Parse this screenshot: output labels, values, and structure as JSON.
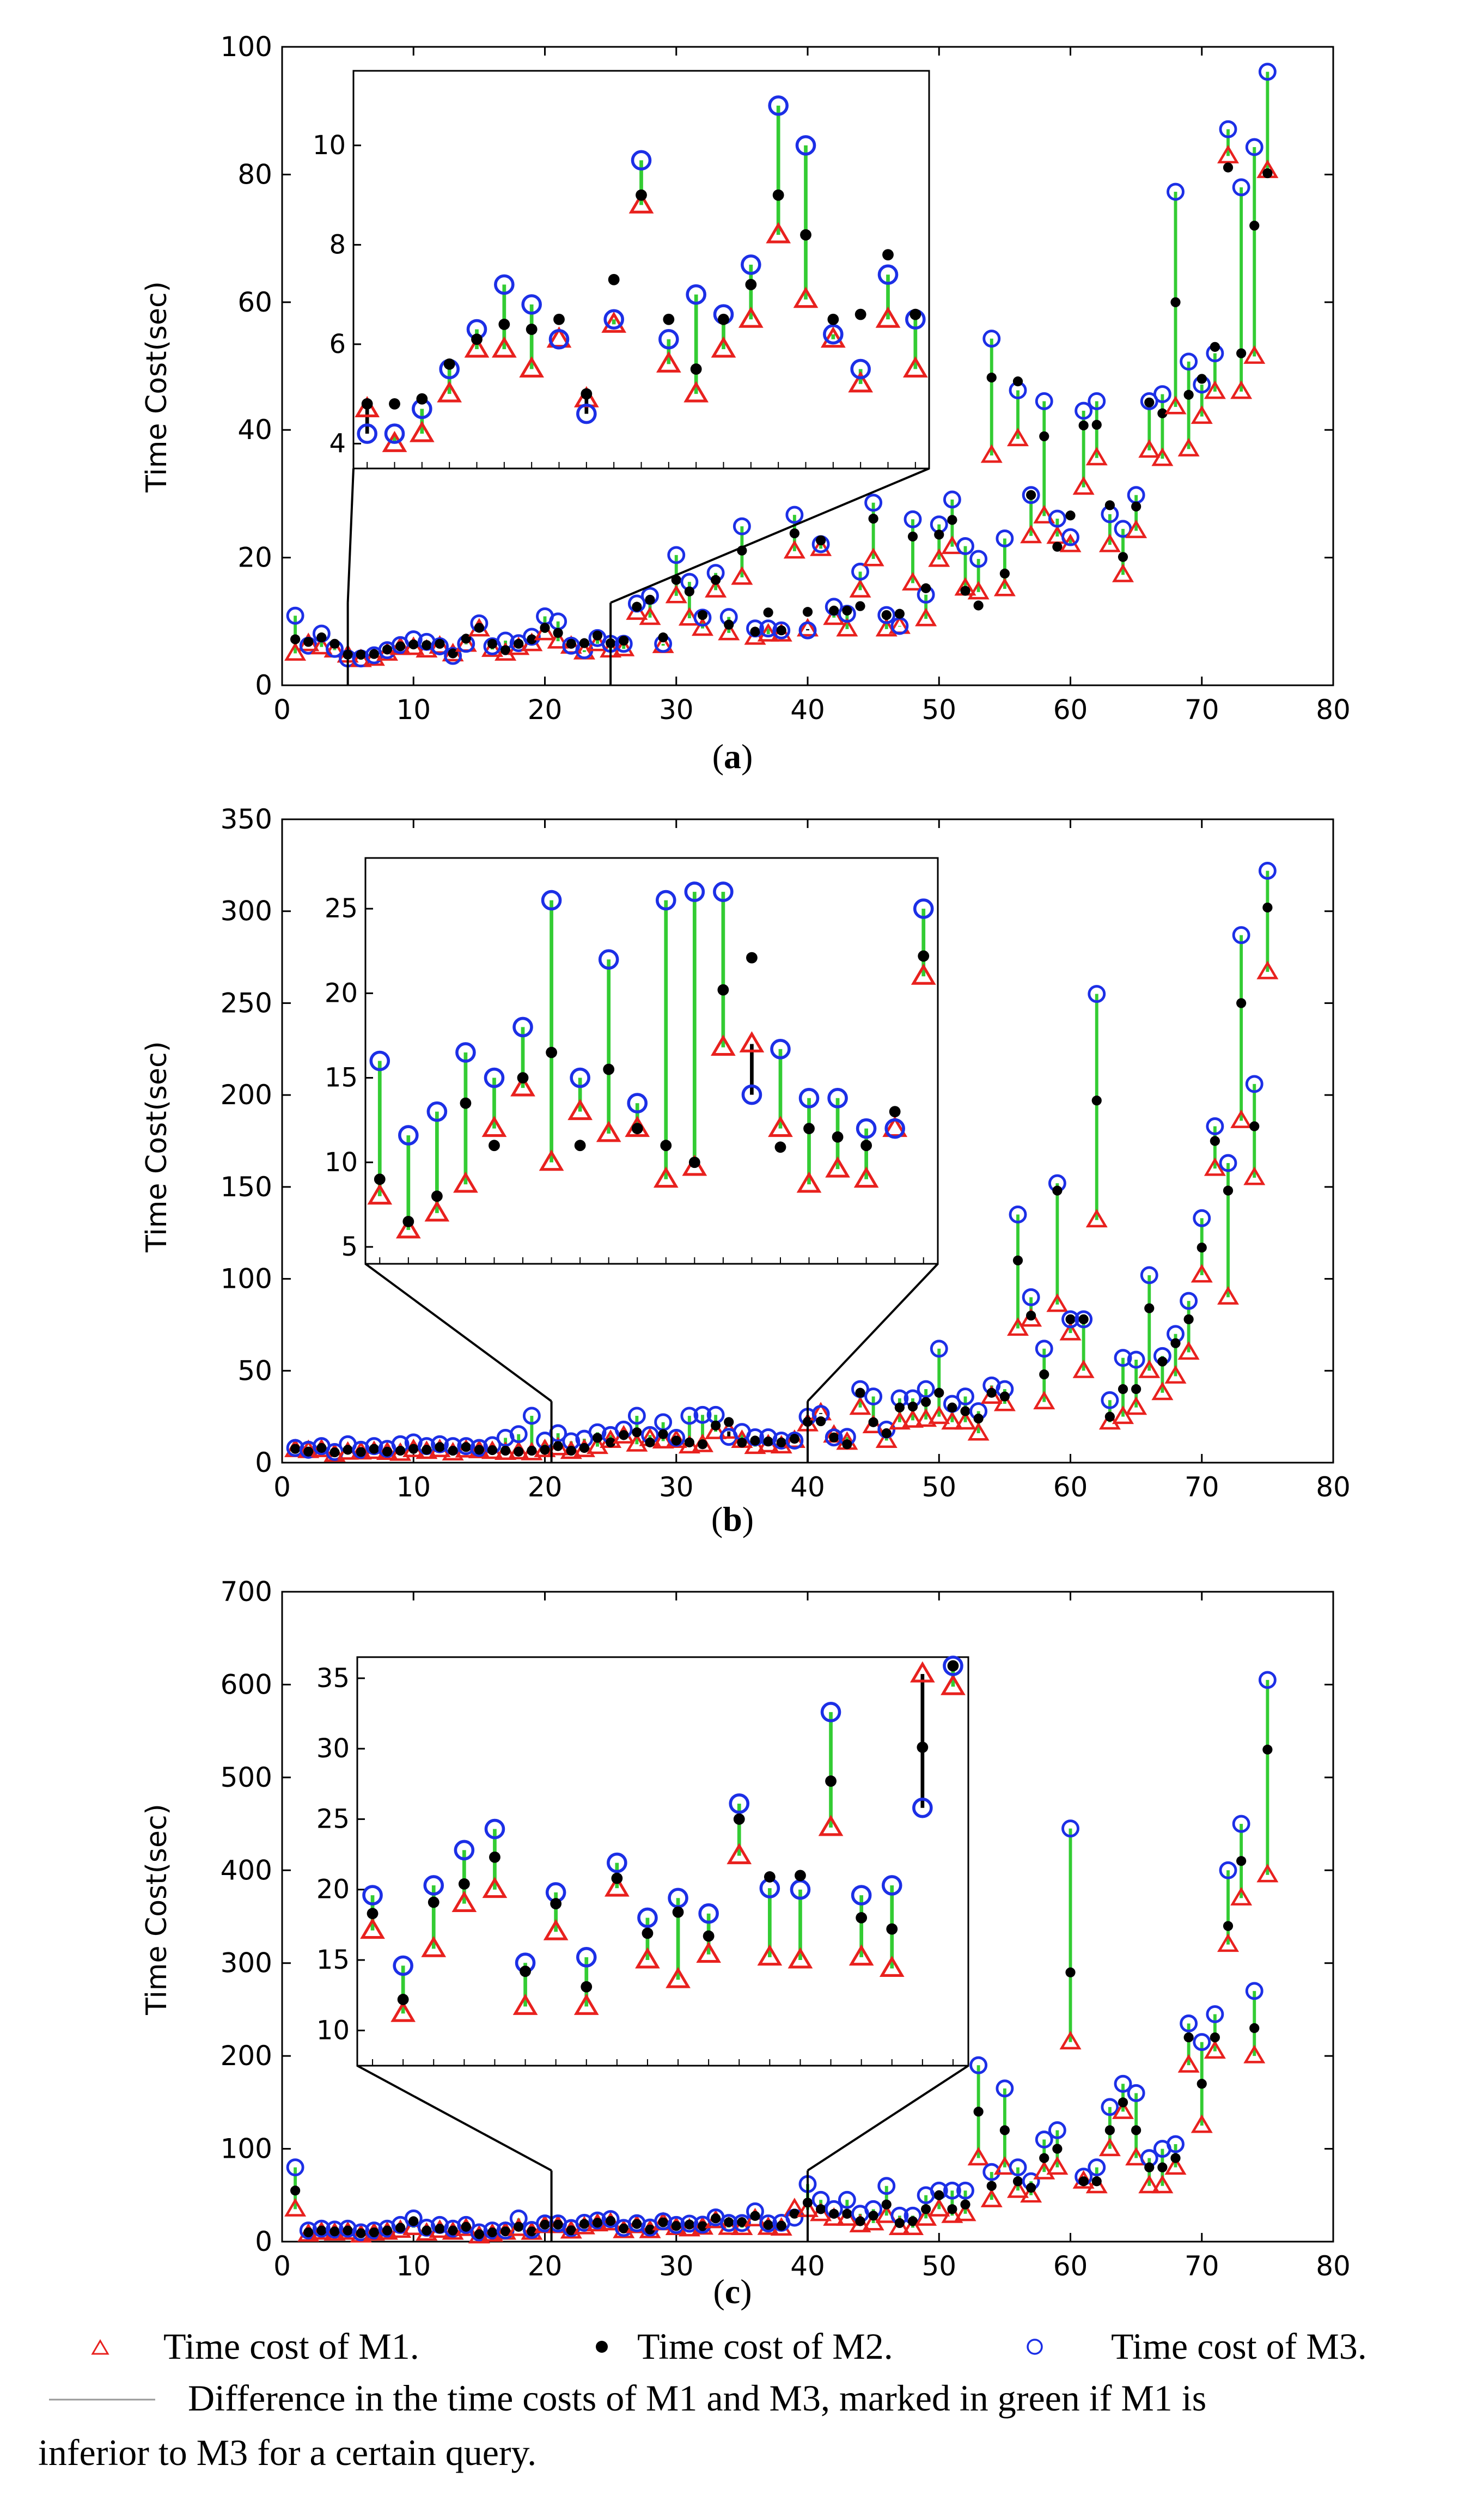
{
  "legend": {
    "m1": "Time cost of M1.",
    "m2": "Time cost of M2.",
    "m3": "Time cost of M3.",
    "line_line1": "Difference in the time costs of M1 and M3, marked in green if M1 is",
    "line_line2": "inferior to M3 for a certain query."
  },
  "colors": {
    "m1": "#e8211e",
    "m2": "#000000",
    "m3": "#1c2fe6",
    "diff": "#000000",
    "diff_worse": "#33cc33"
  },
  "chart_data": [
    {
      "type": "scatter",
      "caption_open": "(",
      "caption_letter": "a",
      "caption_close": ")",
      "ylabel": "Time Cost(sec)",
      "xlim": [
        0,
        80
      ],
      "ylim": [
        0,
        100
      ],
      "xticks": [
        0,
        10,
        20,
        30,
        40,
        50,
        60,
        70,
        80
      ],
      "yticks": [
        0,
        20,
        40,
        60,
        80,
        100
      ],
      "inset": {
        "xrange": [
          5,
          25
        ],
        "ylim": [
          3.5,
          11.5
        ],
        "yticks": [
          4,
          6,
          8,
          10
        ]
      },
      "series": [
        {
          "name": "M1",
          "values": [
            5.0,
            6.5,
            6.0,
            5.5,
            4.7,
            4.0,
            4.2,
            5.0,
            5.9,
            5.9,
            5.5,
            6.1,
            4.9,
            6.4,
            8.8,
            5.6,
            5.0,
            5.9,
            6.5,
            8.2,
            6.9,
            6.1,
            5.2,
            6.5,
            5.5,
            5.7,
            11.4,
            10.6,
            6.2,
            14.0,
            10.5,
            8.9,
            14.9,
            8.2,
            16.9,
            7.5,
            8.0,
            8.0,
            21.0,
            8.8,
            21.4,
            10.6,
            8.8,
            14.9,
            19.8,
            8.8,
            9.2,
            16.0,
            10.4,
            19.7,
            21.7,
            15.2,
            14.6,
            36.0,
            15.1,
            38.6,
            23.4,
            26.5,
            23.3,
            22.0,
            31.0,
            35.6,
            22.0,
            17.3,
            24.2,
            36.8,
            35.5,
            43.6,
            37.0,
            42.1,
            46.0,
            82.9,
            46.0,
            51.5,
            80.6
          ]
        },
        {
          "name": "M2",
          "values": [
            7.2,
            6.8,
            7.5,
            6.5,
            4.8,
            4.8,
            4.9,
            5.6,
            6.1,
            6.4,
            6.3,
            6.5,
            5.0,
            7.3,
            9.0,
            6.5,
            5.5,
            6.5,
            7.2,
            9.0,
            8.2,
            6.5,
            6.6,
            7.8,
            6.6,
            7.0,
            12.3,
            13.4,
            7.5,
            16.5,
            14.7,
            11.0,
            16.5,
            9.5,
            21.1,
            8.4,
            11.4,
            8.6,
            23.8,
            11.5,
            22.7,
            11.7,
            11.7,
            12.4,
            26.1,
            11.0,
            11.2,
            23.3,
            15.2,
            23.6,
            25.9,
            14.8,
            12.5,
            48.2,
            17.5,
            47.6,
            29.8,
            39.0,
            21.7,
            26.6,
            40.7,
            40.8,
            28.2,
            20.1,
            28.0,
            44.3,
            42.6,
            60.0,
            45.5,
            48.0,
            53.0,
            81.1,
            52.0,
            72.0,
            80.2
          ]
        },
        {
          "name": "M3",
          "values": [
            10.9,
            6.2,
            8.1,
            5.7,
            4.2,
            4.2,
            4.7,
            5.5,
            6.3,
            7.2,
            6.8,
            6.1,
            4.6,
            6.5,
            9.7,
            6.1,
            7.0,
            6.6,
            7.6,
            10.8,
            10.0,
            6.2,
            5.5,
            7.4,
            6.5,
            6.5,
            12.8,
            14.0,
            6.5,
            20.4,
            16.2,
            10.6,
            17.6,
            10.7,
            24.9,
            8.9,
            8.9,
            8.6,
            26.7,
            8.6,
            22.1,
            12.3,
            11.2,
            17.8,
            28.6,
            11.0,
            9.3,
            26.0,
            14.2,
            25.2,
            29.1,
            21.8,
            19.8,
            54.3,
            23.0,
            46.2,
            29.8,
            44.5,
            26.1,
            23.2,
            43.0,
            44.5,
            26.8,
            24.5,
            29.8,
            44.5,
            45.6,
            77.3,
            50.7,
            47.1,
            52.0,
            87.1,
            78.0,
            84.3,
            96.1
          ]
        }
      ]
    },
    {
      "type": "scatter",
      "caption_open": "(",
      "caption_letter": "b",
      "caption_close": ")",
      "ylabel": "Time Cost(sec)",
      "xlim": [
        0,
        80
      ],
      "ylim": [
        0,
        350
      ],
      "xticks": [
        0,
        10,
        20,
        30,
        40,
        50,
        60,
        70,
        80
      ],
      "yticks": [
        0,
        50,
        100,
        150,
        200,
        250,
        300,
        350
      ],
      "inset": {
        "xrange": [
          20.5,
          40
        ],
        "ylim": [
          4,
          28
        ],
        "yticks": [
          5,
          10,
          15,
          20,
          25
        ]
      },
      "series": [
        {
          "name": "M1",
          "values": [
            7.0,
            6.5,
            7.0,
            4.5,
            5.6,
            5.7,
            6.0,
            5.5,
            5.0,
            7.0,
            6.0,
            7.0,
            5.2,
            6.8,
            6.4,
            6.0,
            5.5,
            5.8,
            5.3,
            7.0,
            8.0,
            6.0,
            7.0,
            8.7,
            12.0,
            14.4,
            10.0,
            13.0,
            11.7,
            12.0,
            9.0,
            9.7,
            16.8,
            17.0,
            12.0,
            8.7,
            9.6,
            9.0,
            12.0,
            21.0,
            27.0,
            14.9,
            11.0,
            30.0,
            20.0,
            12.0,
            22.0,
            23.0,
            23.5,
            25.0,
            22.0,
            22.0,
            16.0,
            36.0,
            32.0,
            73.0,
            78.0,
            33.0,
            86.0,
            70.5,
            50.0,
            132.0,
            22.0,
            25.0,
            30.0,
            50.0,
            38.0,
            47.0,
            60.0,
            102.0,
            160.0,
            90.0,
            186.0,
            155.0,
            267.0
          ]
        },
        {
          "name": "M2",
          "values": [
            7.5,
            6.0,
            8.0,
            5.6,
            7.0,
            5.8,
            7.5,
            6.0,
            6.5,
            7.5,
            7.0,
            8.5,
            6.5,
            8.5,
            7.0,
            6.8,
            6.5,
            6.0,
            6.5,
            7.0,
            9.0,
            6.5,
            8.0,
            13.5,
            11.0,
            15.0,
            16.5,
            11.0,
            15.5,
            12.0,
            11.0,
            10.0,
            20.2,
            22.1,
            10.9,
            12.0,
            11.5,
            11.0,
            13.0,
            22.2,
            22.5,
            13.7,
            10.0,
            38.0,
            22.0,
            16.0,
            30.0,
            30.5,
            33.0,
            38.0,
            30.0,
            28.0,
            24.0,
            38.0,
            36.0,
            110.0,
            80.0,
            48.0,
            148.0,
            78.0,
            78.0,
            197.0,
            25.0,
            40.0,
            40.0,
            84.0,
            55.0,
            65.0,
            78.0,
            117.0,
            175.0,
            148.0,
            250.0,
            183.0,
            302.0
          ]
        },
        {
          "name": "M3",
          "values": [
            8.0,
            7.0,
            9.0,
            5.8,
            10.0,
            7.0,
            9.0,
            7.5,
            10.0,
            11.0,
            9.0,
            10.0,
            9.0,
            9.0,
            8.0,
            9.5,
            13.5,
            15.5,
            25.5,
            12.0,
            16.0,
            11.6,
            13.0,
            16.5,
            15.0,
            18.0,
            25.5,
            15.0,
            22.0,
            13.5,
            25.5,
            26.0,
            26.0,
            14.0,
            16.7,
            13.8,
            13.8,
            12.0,
            12.0,
            25.0,
            26.5,
            13.7,
            14.0,
            40.0,
            36.0,
            18.0,
            35.0,
            35.0,
            40.0,
            62.0,
            32.0,
            36.0,
            28.0,
            42.0,
            40.0,
            135.0,
            90.0,
            62.0,
            152.0,
            78.0,
            78.0,
            255.0,
            34.0,
            57.0,
            56.0,
            102.0,
            58.0,
            70.0,
            88.0,
            133.0,
            183.0,
            163.0,
            287.0,
            206.0,
            322.0
          ]
        }
      ]
    },
    {
      "type": "scatter",
      "caption_open": "(",
      "caption_letter": "c",
      "caption_close": ")",
      "ylabel": "Time Cost(sec)",
      "xlim": [
        0,
        80
      ],
      "ylim": [
        0,
        700
      ],
      "xticks": [
        0,
        10,
        20,
        30,
        40,
        50,
        60,
        70,
        80
      ],
      "yticks": [
        0,
        100,
        200,
        300,
        400,
        500,
        600,
        700
      ],
      "inset": {
        "xrange": [
          20.5,
          40
        ],
        "ylim": [
          7.5,
          36.5
        ],
        "yticks": [
          10,
          15,
          20,
          25,
          30,
          35
        ]
      },
      "series": [
        {
          "name": "M1",
          "values": [
            35.0,
            8.0,
            10.0,
            9.0,
            10.0,
            7.0,
            9.0,
            10.0,
            12.0,
            15.0,
            9.0,
            12.0,
            10.0,
            14.0,
            6.0,
            8.0,
            10.0,
            14.0,
            9.9,
            17.1,
            17.1,
            11.2,
            15.8,
            19.0,
            20.0,
            11.7,
            17.0,
            11.7,
            20.1,
            15.0,
            13.6,
            15.4,
            22.4,
            15.2,
            15.0,
            24.4,
            15.2,
            14.4,
            35.3,
            34.4,
            30.0,
            25.0,
            25.0,
            18.0,
            20.0,
            28.0,
            15.0,
            15.0,
            25.0,
            35.0,
            28.0,
            30.0,
            90.0,
            45.0,
            80.0,
            55.0,
            50.0,
            75.0,
            80.0,
            215.0,
            65.0,
            60.0,
            100.0,
            140.0,
            90.0,
            60.0,
            60.0,
            80.0,
            190.0,
            125.0,
            205.0,
            320.0,
            370.0,
            200.0,
            395.0
          ]
        },
        {
          "name": "M2",
          "values": [
            55.0,
            10.0,
            12.0,
            11.0,
            12.0,
            9.0,
            10.0,
            12.0,
            15.0,
            22.0,
            12.0,
            14.0,
            12.0,
            16.0,
            8.0,
            10.0,
            11.0,
            16.0,
            11.0,
            18.3,
            18.3,
            12.2,
            19.1,
            20.4,
            22.3,
            14.2,
            19.0,
            13.1,
            20.8,
            16.9,
            18.4,
            16.7,
            25.0,
            20.9,
            21.0,
            27.7,
            18.0,
            17.2,
            30.1,
            42.0,
            35.0,
            30.0,
            30.0,
            22.0,
            28.0,
            40.0,
            20.0,
            22.0,
            35.0,
            50.0,
            35.0,
            40.0,
            140.0,
            60.0,
            120.0,
            65.0,
            58.0,
            90.0,
            100.0,
            290.0,
            65.0,
            65.0,
            120.0,
            150.0,
            120.0,
            80.0,
            80.0,
            90.0,
            220.0,
            170.0,
            220.0,
            340.0,
            410.0,
            230.0,
            530.0
          ]
        },
        {
          "name": "M3",
          "values": [
            80.0,
            12.0,
            14.0,
            13.0,
            14.0,
            10.0,
            12.0,
            14.0,
            18.0,
            25.0,
            15.0,
            18.0,
            14.0,
            18.0,
            10.0,
            12.0,
            12.0,
            25.0,
            12.6,
            19.6,
            19.6,
            14.6,
            20.3,
            22.8,
            24.3,
            14.8,
            19.8,
            15.2,
            21.9,
            18.0,
            19.4,
            18.3,
            26.1,
            20.1,
            20.0,
            32.6,
            19.6,
            20.3,
            25.8,
            62.0,
            45.0,
            35.0,
            45.0,
            30.0,
            35.0,
            60.0,
            28.0,
            28.0,
            50.0,
            55.0,
            55.0,
            55.0,
            190.0,
            75.0,
            165.0,
            80.0,
            65.0,
            110.0,
            120.0,
            445.0,
            70.0,
            80.0,
            145.0,
            170.0,
            160.0,
            90.0,
            100.0,
            105.0,
            235.0,
            215.0,
            245.0,
            400.0,
            450.0,
            270.0,
            605.0
          ]
        }
      ]
    }
  ]
}
